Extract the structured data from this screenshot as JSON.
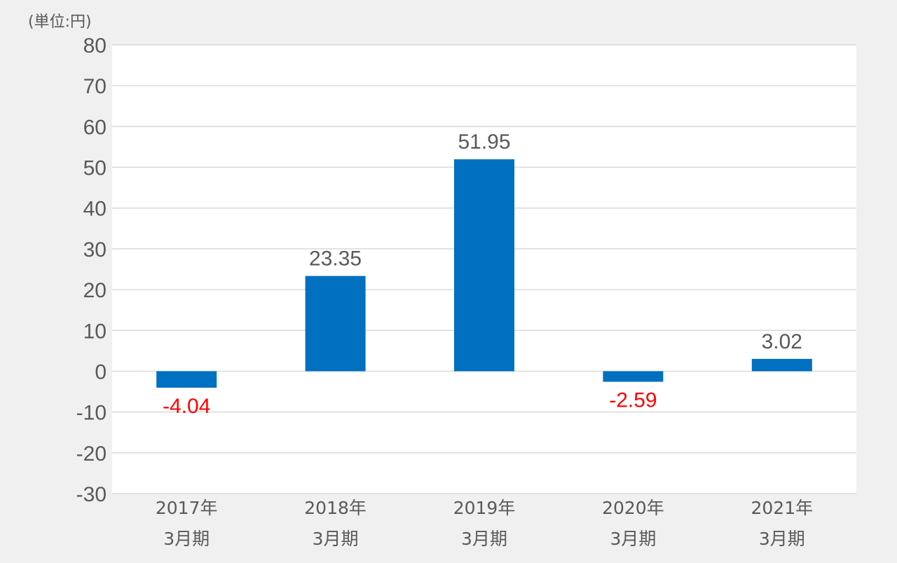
{
  "unit_label": "(単位:円)",
  "colors": {
    "bar": "#0070c0",
    "positive_label": "#595959",
    "negative_label": "#ff0000",
    "grid": "#d9d9d9",
    "plot_background": "#ffffff",
    "page_background": "#f0f0f0"
  },
  "chart_data": {
    "type": "bar",
    "title": "",
    "xlabel": "",
    "ylabel": "",
    "categories": [
      [
        "2017年",
        "3月期"
      ],
      [
        "2018年",
        "3月期"
      ],
      [
        "2019年",
        "3月期"
      ],
      [
        "2020年",
        "3月期"
      ],
      [
        "2021年",
        "3月期"
      ]
    ],
    "values": [
      -4.04,
      23.35,
      51.95,
      -2.59,
      3.02
    ],
    "data_labels": [
      "-4.04",
      "23.35",
      "51.95",
      "-2.59",
      "3.02"
    ],
    "ylim": [
      -30,
      80
    ],
    "yticks": [
      80,
      70,
      60,
      50,
      40,
      30,
      20,
      10,
      0,
      -10,
      -20,
      -30
    ],
    "grid": true,
    "legend": "none"
  }
}
